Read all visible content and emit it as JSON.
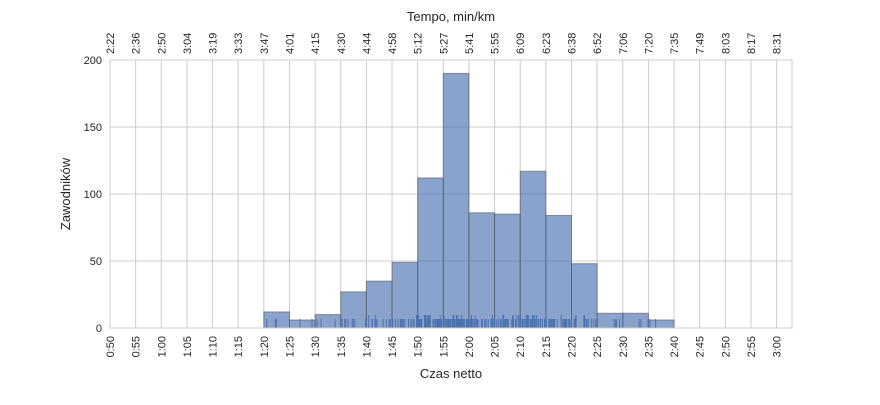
{
  "chart_data": {
    "type": "bar",
    "xlabel": "Czas netto",
    "ylabel": "Zawodników",
    "top_axis_label": "Tempo, min/km",
    "ylim": [
      0,
      200
    ],
    "xlim_minutes": [
      50,
      183
    ],
    "grid": true,
    "y_ticks": [
      {
        "value": 0,
        "label": "0"
      },
      {
        "value": 50,
        "label": "50"
      },
      {
        "value": 100,
        "label": "100"
      },
      {
        "value": 150,
        "label": "150"
      },
      {
        "value": 200,
        "label": "200"
      }
    ],
    "x_tick_labels": [
      "0:50",
      "0:55",
      "1:00",
      "1:05",
      "1:10",
      "1:15",
      "1:20",
      "1:25",
      "1:30",
      "1:35",
      "1:40",
      "1:45",
      "1:50",
      "1:55",
      "2:00",
      "2:05",
      "2:10",
      "2:15",
      "2:20",
      "2:25",
      "2:30",
      "2:35",
      "2:40",
      "2:45",
      "2:50",
      "2:55",
      "3:00"
    ],
    "top_tick_labels": [
      "2:22",
      "2:36",
      "2:50",
      "3:04",
      "3:19",
      "3:33",
      "3:47",
      "4:01",
      "4:15",
      "4:30",
      "4:44",
      "4:58",
      "5:12",
      "5:27",
      "5:41",
      "5:55",
      "6:09",
      "6:23",
      "6:38",
      "6:52",
      "7:06",
      "7:20",
      "7:35",
      "7:49",
      "8:03",
      "8:17",
      "8:31"
    ],
    "bins": [
      {
        "start": 80,
        "end": 85,
        "count": 12
      },
      {
        "start": 85,
        "end": 90,
        "count": 6
      },
      {
        "start": 90,
        "end": 95,
        "count": 10
      },
      {
        "start": 95,
        "end": 100,
        "count": 27
      },
      {
        "start": 100,
        "end": 105,
        "count": 35
      },
      {
        "start": 105,
        "end": 110,
        "count": 49
      },
      {
        "start": 110,
        "end": 115,
        "count": 112
      },
      {
        "start": 115,
        "end": 120,
        "count": 190
      },
      {
        "start": 120,
        "end": 125,
        "count": 86
      },
      {
        "start": 125,
        "end": 130,
        "count": 85
      },
      {
        "start": 130,
        "end": 135,
        "count": 117
      },
      {
        "start": 135,
        "end": 140,
        "count": 84
      },
      {
        "start": 140,
        "end": 145,
        "count": 48
      },
      {
        "start": 145,
        "end": 150,
        "count": 11
      },
      {
        "start": 150,
        "end": 155,
        "count": 11
      },
      {
        "start": 155,
        "end": 160,
        "count": 6
      }
    ],
    "rug_range_minutes": [
      80.5,
      159.5
    ],
    "colors": {
      "bar": "#4c72b0",
      "rug": "#4c72b0",
      "grid": "#cccccc"
    }
  }
}
